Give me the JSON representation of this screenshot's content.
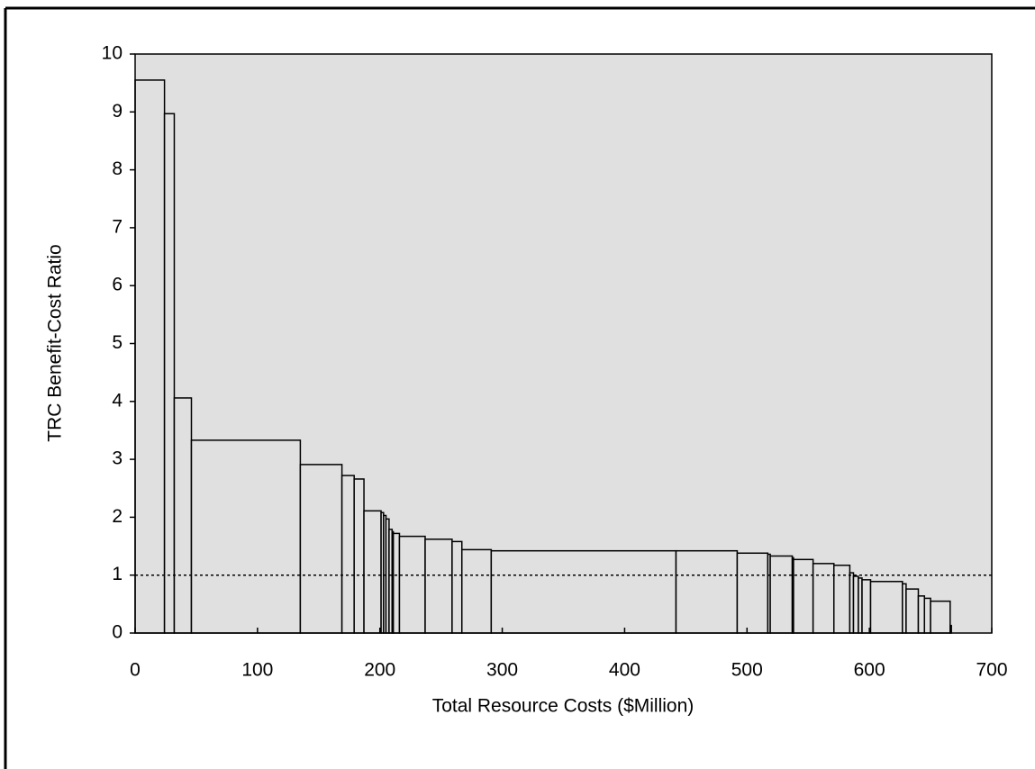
{
  "chart_data": {
    "type": "histogram",
    "xlabel": "Total Resource Costs ($Million)",
    "ylabel": "TRC Benefit-Cost Ratio",
    "bins": [
      0,
      24,
      32,
      46,
      135,
      169,
      179,
      187,
      201,
      203,
      205,
      207.5,
      210,
      211,
      216,
      237,
      259,
      267,
      291,
      442,
      492,
      517,
      519,
      537,
      538,
      554,
      571,
      584,
      587,
      591,
      594,
      601,
      627,
      630,
      640,
      645,
      650,
      666,
      667
    ],
    "values": [
      9.55,
      8.97,
      4.06,
      3.33,
      2.91,
      2.72,
      2.66,
      2.11,
      2.08,
      2.03,
      1.97,
      1.79,
      1.75,
      1.72,
      1.67,
      1.62,
      1.58,
      1.44,
      1.42,
      1.42,
      1.38,
      1.36,
      1.33,
      1.3,
      1.27,
      1.2,
      1.17,
      1.04,
      0.98,
      0.95,
      0.92,
      0.89,
      0.85,
      0.76,
      0.64,
      0.6,
      0.55,
      0.13
    ],
    "color": "#e0e0e0",
    "reference_line": 1,
    "xlim": [
      0,
      700
    ],
    "xticks": [
      0,
      100,
      200,
      300,
      400,
      500,
      600,
      700
    ],
    "ylim": [
      0,
      10
    ],
    "yticks": [
      0,
      1,
      2,
      3,
      4,
      5,
      6,
      7,
      8,
      9,
      10
    ]
  }
}
